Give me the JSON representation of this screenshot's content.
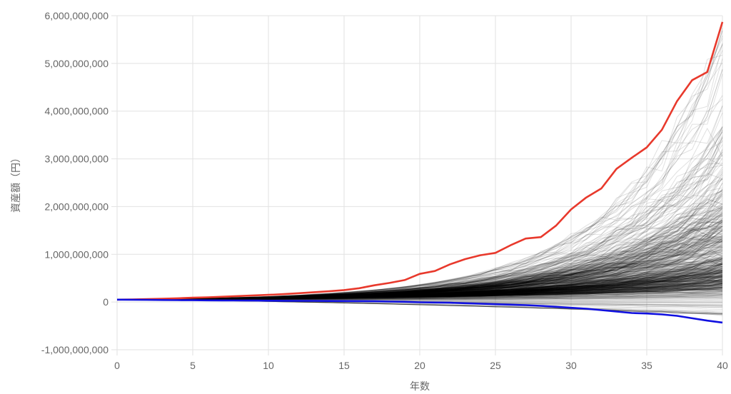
{
  "chart_data": {
    "type": "line",
    "xlabel": "年数",
    "ylabel": "資産額（円）",
    "xlim": [
      0,
      40
    ],
    "ylim": [
      -1000000000,
      6000000000
    ],
    "x_ticks": [
      0,
      5,
      10,
      15,
      20,
      25,
      30,
      35,
      40
    ],
    "x_tick_labels": [
      "0",
      "5",
      "10",
      "15",
      "20",
      "25",
      "30",
      "35",
      "40"
    ],
    "y_ticks": [
      -1000000000,
      0,
      1000000000,
      2000000000,
      3000000000,
      4000000000,
      5000000000,
      6000000000
    ],
    "y_tick_labels": [
      "-1,000,000,000",
      "0",
      "1,000,000,000",
      "2,000,000,000",
      "3,000,000,000",
      "4,000,000,000",
      "5,000,000,000",
      "6,000,000,000"
    ],
    "grid": true,
    "x": [
      0,
      1,
      2,
      3,
      4,
      5,
      6,
      7,
      8,
      9,
      10,
      11,
      12,
      13,
      14,
      15,
      16,
      17,
      18,
      19,
      20,
      21,
      22,
      23,
      24,
      25,
      26,
      27,
      28,
      29,
      30,
      31,
      32,
      33,
      34,
      35,
      36,
      37,
      38,
      39,
      40
    ],
    "series": [
      {
        "color": "#e8392c",
        "role": "max",
        "values": [
          50000000,
          55000000,
          60000000,
          68000000,
          78000000,
          90000000,
          100000000,
          112000000,
          125000000,
          138000000,
          150000000,
          165000000,
          185000000,
          205000000,
          225000000,
          250000000,
          290000000,
          350000000,
          400000000,
          460000000,
          590000000,
          650000000,
          790000000,
          900000000,
          980000000,
          1030000000,
          1190000000,
          1330000000,
          1360000000,
          1600000000,
          1940000000,
          2190000000,
          2380000000,
          2790000000,
          3020000000,
          3240000000,
          3610000000,
          4210000000,
          4650000000,
          4820000000,
          5870000000
        ]
      },
      {
        "color": "#1010e0",
        "role": "min",
        "values": [
          50000000,
          48000000,
          45000000,
          42000000,
          40000000,
          38000000,
          35000000,
          33000000,
          32000000,
          30000000,
          28000000,
          26000000,
          25000000,
          24000000,
          22000000,
          20000000,
          18000000,
          15000000,
          10000000,
          5000000,
          -5000000,
          -10000000,
          -15000000,
          -25000000,
          -35000000,
          -45000000,
          -55000000,
          -65000000,
          -80000000,
          -100000000,
          -120000000,
          -140000000,
          -170000000,
          -200000000,
          -230000000,
          -240000000,
          -260000000,
          -290000000,
          -340000000,
          -390000000,
          -430000000
        ]
      }
    ],
    "simulation_paths": {
      "count": 600,
      "color": "#000000",
      "median_start": 50000000,
      "median_final": 800000000,
      "final_p95": 3300000000,
      "final_p5": 100000000
    }
  }
}
